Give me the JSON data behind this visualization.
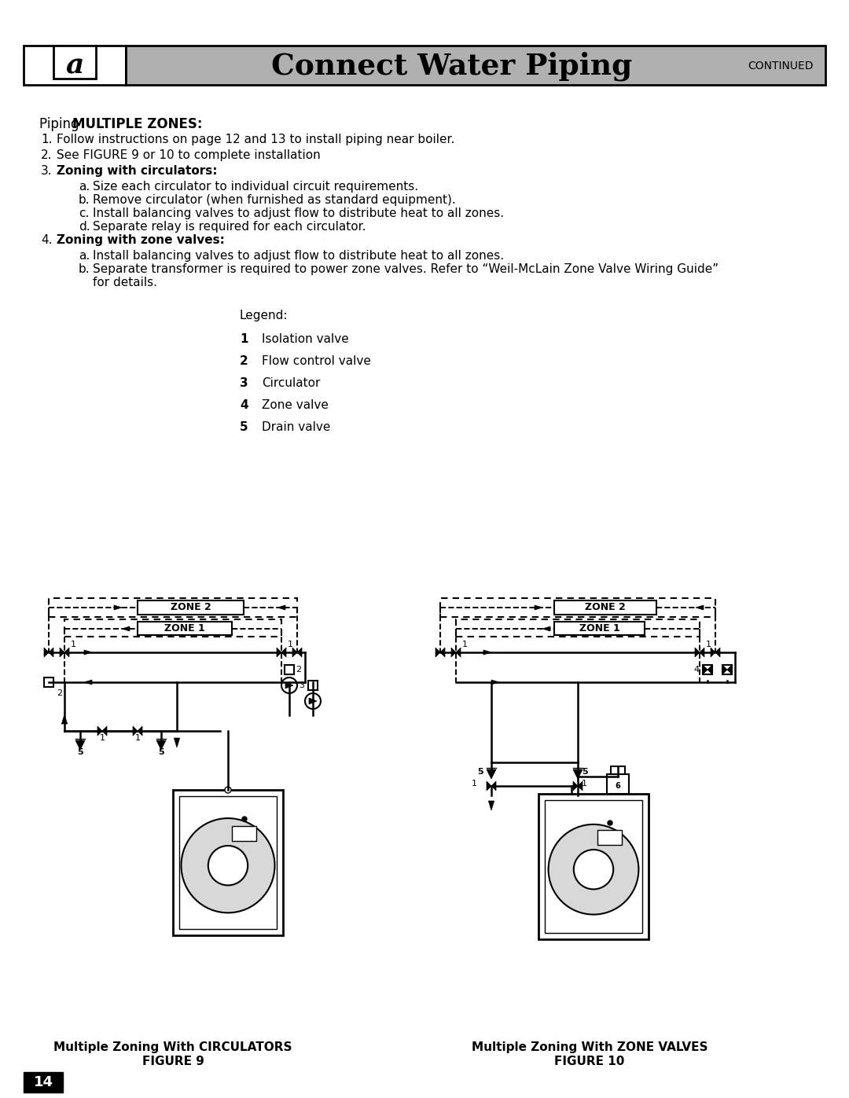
{
  "bg_color": "#ffffff",
  "header_bg": "#b0b0b0",
  "header_text": "Connect Water Piping",
  "header_continued": "CONTINUED",
  "page_number": "14",
  "title_normal": "Piping ",
  "title_bold": "MULTIPLE ZONES:",
  "items": [
    {
      "num": "1.",
      "text": "Follow instructions on page 12 and 13 to install piping near boiler.",
      "bold": false
    },
    {
      "num": "2.",
      "text": "See FIGURE 9 or 10 to complete installation",
      "bold": false
    },
    {
      "num": "3.",
      "text": "Zoning with circulators:",
      "bold": true,
      "sub_items": [
        {
          "letter": "a.",
          "text": "Size each circulator to individual circuit requirements."
        },
        {
          "letter": "b.",
          "text": "Remove circulator (when furnished as standard equipment)."
        },
        {
          "letter": "c.",
          "text": "Install balancing valves to adjust flow to distribute heat to all zones."
        },
        {
          "letter": "d.",
          "text": "Separate relay is required for each circulator."
        }
      ]
    },
    {
      "num": "4.",
      "text": "Zoning with zone valves:",
      "bold": true,
      "sub_items": [
        {
          "letter": "a.",
          "text": "Install balancing valves to adjust flow to distribute heat to all zones."
        },
        {
          "letter": "b.",
          "text": "Separate transformer is required to power zone valves. Refer to “Weil-McLain Zone Valve Wiring Guide”",
          "extra_line": "for details."
        }
      ]
    }
  ],
  "legend_title": "Legend:",
  "legend_items": [
    {
      "num": "1",
      "text": "Isolation valve"
    },
    {
      "num": "2",
      "text": "Flow control valve"
    },
    {
      "num": "3",
      "text": "Circulator"
    },
    {
      "num": "4",
      "text": "Zone valve"
    },
    {
      "num": "5",
      "text": "Drain valve"
    }
  ],
  "fig9_caption1": "Multiple Zoning With CIRCULATORS",
  "fig9_caption2": "FIGURE 9",
  "fig10_caption1": "Multiple Zoning With ZONE VALVES",
  "fig10_caption2": "FIGURE 10"
}
